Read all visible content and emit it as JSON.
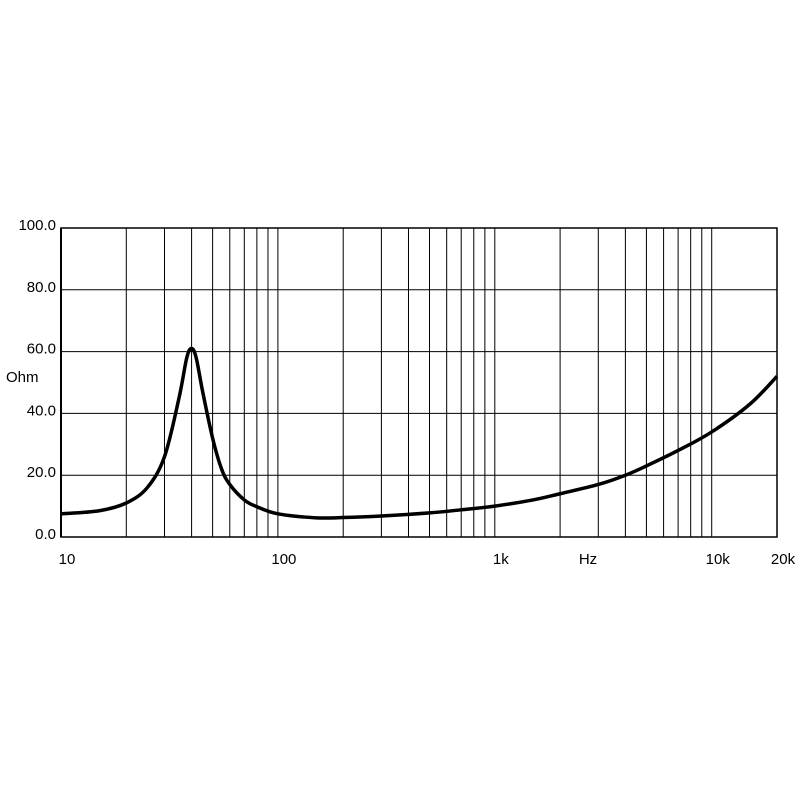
{
  "chart_data": {
    "type": "line",
    "x_label": "Hz",
    "y_label": "Ohm",
    "log_x": true,
    "grid": true,
    "color": "#000000",
    "x": [
      10,
      15,
      20,
      25,
      30,
      35,
      38,
      40,
      42,
      45,
      50,
      55,
      60,
      70,
      80,
      100,
      150,
      200,
      300,
      500,
      700,
      1000,
      1500,
      2000,
      3000,
      4000,
      5000,
      7000,
      10000,
      15000,
      20000
    ],
    "values": [
      7.5,
      8.5,
      11,
      16,
      26,
      45,
      58,
      61,
      58,
      47,
      32,
      22,
      17,
      12,
      9.8,
      7.5,
      6.2,
      6.3,
      6.8,
      7.8,
      8.8,
      10,
      12,
      14,
      17,
      20,
      23,
      28,
      34,
      43,
      52
    ],
    "xlim": [
      10,
      20000
    ],
    "xticks": [
      10,
      100,
      {
        "value": 1000,
        "label": "1k"
      },
      {
        "value": 10000,
        "label": "10k"
      },
      {
        "value": 20000,
        "label": "20k"
      }
    ],
    "ylim": [
      0,
      100
    ],
    "yticks": [
      {
        "value": 0,
        "label": "0.0"
      },
      {
        "value": 20,
        "label": "20.0"
      },
      {
        "value": 40,
        "label": "40.0"
      },
      {
        "value": 60,
        "label": "60.0"
      },
      {
        "value": 80,
        "label": "80.0"
      },
      {
        "value": 100,
        "label": "100.0"
      }
    ]
  }
}
